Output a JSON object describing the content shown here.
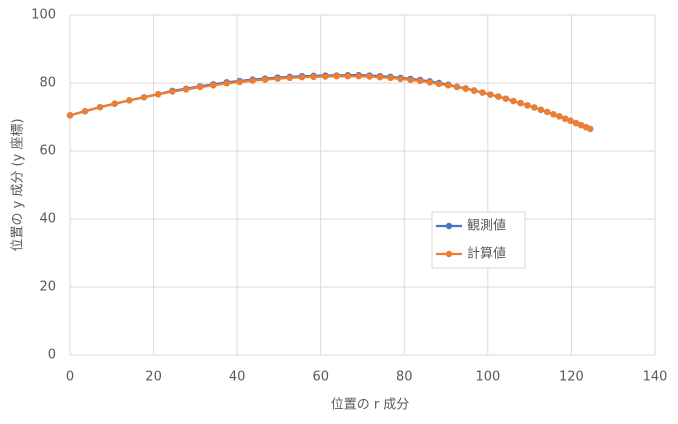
{
  "chart_data": {
    "type": "scatter_line",
    "x_label": "位置の r 成分",
    "y_label": "位置の y 成分 (y 座標)",
    "xlim": [
      0,
      140
    ],
    "xticks": [
      0,
      20,
      40,
      60,
      80,
      100,
      120,
      140
    ],
    "ylim": [
      0,
      100
    ],
    "yticks": [
      0,
      20,
      40,
      60,
      80,
      100
    ],
    "grid": true,
    "legend": "right",
    "series": [
      {
        "name": "観測値",
        "color": "#4472c4",
        "x": [
          0,
          3.6,
          7.2,
          10.7,
          14.2,
          17.7,
          21.1,
          24.5,
          27.8,
          31.1,
          34.3,
          37.5,
          40.6,
          43.7,
          46.7,
          49.7,
          52.6,
          55.5,
          58.3,
          61.1,
          63.8,
          66.5,
          69.1,
          71.7,
          74.2,
          76.7,
          79.1,
          81.5,
          83.8,
          86.1,
          88.3,
          90.5,
          92.6,
          94.7,
          96.7,
          98.7,
          100.6,
          102.5,
          104.3,
          106.1,
          107.8,
          109.5,
          111.1,
          112.7,
          114.2,
          115.7,
          117.1,
          118.5,
          119.8,
          121.1,
          122.3,
          123.5,
          124.5
        ],
        "values": [
          70.5,
          71.7,
          72.9,
          73.9,
          74.9,
          75.8,
          76.7,
          77.7,
          78.3,
          79.0,
          79.6,
          80.2,
          80.6,
          81.0,
          81.3,
          81.6,
          81.8,
          82.0,
          82.1,
          82.2,
          82.2,
          82.3,
          82.3,
          82.2,
          82.0,
          81.8,
          81.5,
          81.2,
          80.9,
          80.5,
          80.0,
          79.5,
          78.9,
          78.4,
          77.8,
          77.2,
          76.6,
          76.0,
          75.4,
          74.7,
          74.1,
          73.4,
          72.8,
          72.1,
          71.5,
          70.8,
          70.2,
          69.5,
          68.9,
          68.2,
          67.6,
          67.0,
          66.5
        ]
      },
      {
        "name": "計算値",
        "color": "#ed7d31",
        "x": [
          0,
          3.6,
          7.2,
          10.7,
          14.2,
          17.7,
          21.1,
          24.5,
          27.8,
          31.1,
          34.3,
          37.5,
          40.6,
          43.7,
          46.7,
          49.7,
          52.6,
          55.5,
          58.3,
          61.1,
          63.8,
          66.5,
          69.1,
          71.7,
          74.2,
          76.7,
          79.1,
          81.5,
          83.8,
          86.1,
          88.3,
          90.5,
          92.6,
          94.7,
          96.7,
          98.7,
          100.6,
          102.5,
          104.3,
          106.1,
          107.8,
          109.5,
          111.1,
          112.7,
          114.2,
          115.7,
          117.1,
          118.5,
          119.8,
          121.1,
          122.3,
          123.5,
          124.5
        ],
        "values": [
          70.5,
          71.7,
          72.9,
          73.9,
          74.9,
          75.8,
          76.7,
          77.5,
          78.1,
          78.8,
          79.3,
          79.9,
          80.3,
          80.7,
          81.0,
          81.3,
          81.5,
          81.7,
          81.8,
          81.9,
          82.0,
          82.0,
          82.0,
          81.9,
          81.7,
          81.5,
          81.2,
          80.9,
          80.6,
          80.2,
          79.7,
          79.3,
          78.8,
          78.3,
          77.7,
          77.2,
          76.6,
          76.0,
          75.4,
          74.7,
          74.1,
          73.4,
          72.8,
          72.1,
          71.5,
          70.8,
          70.2,
          69.5,
          68.9,
          68.2,
          67.6,
          67.0,
          66.5
        ]
      }
    ]
  }
}
